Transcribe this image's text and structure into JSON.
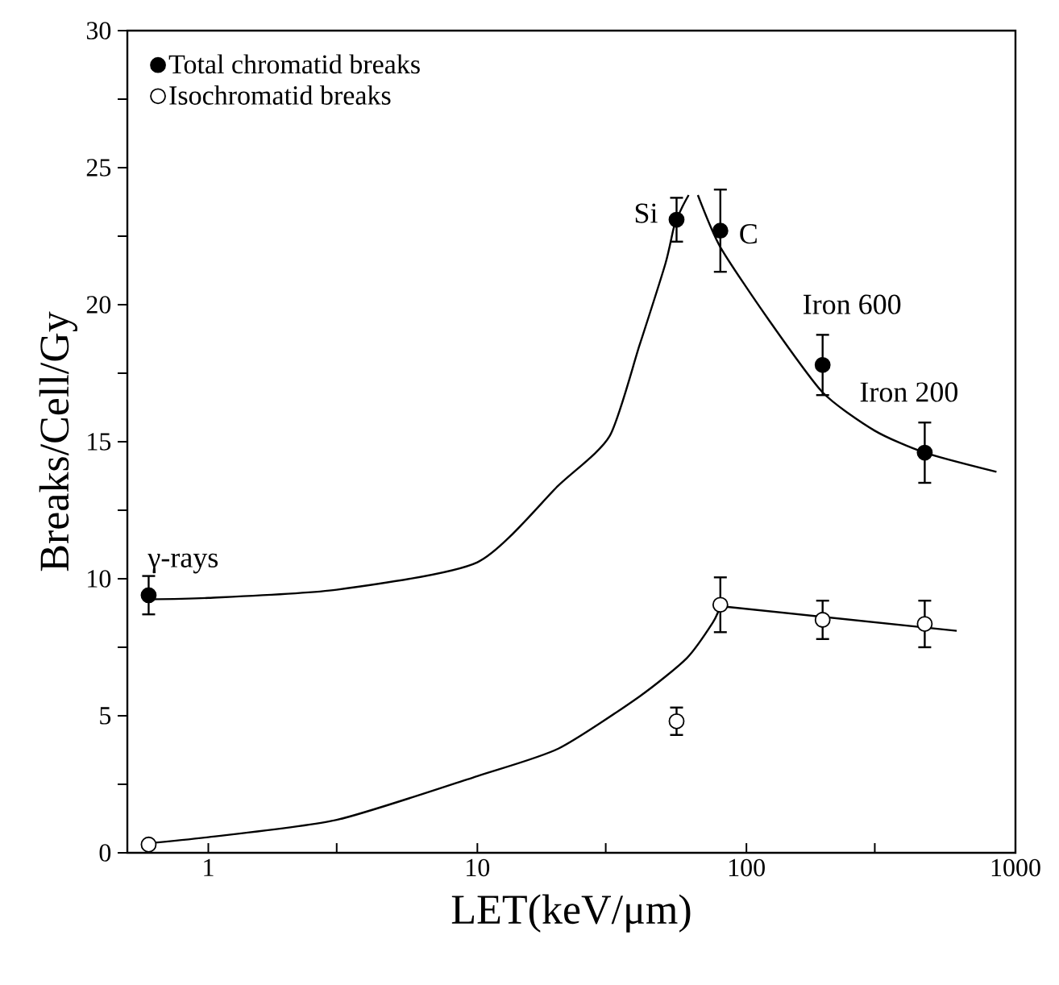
{
  "chart_data": {
    "type": "scatter",
    "xlabel": "LET(keV/μm)",
    "ylabel": "Breaks/Cell/Gy",
    "log": "x",
    "xlim": [
      0.5,
      1000
    ],
    "xticks": [
      1,
      10,
      100,
      1000,
      {
        "value": 3,
        "label": null
      },
      {
        "value": 30,
        "label": null
      },
      {
        "value": 300,
        "label": null
      }
    ],
    "ylim": [
      0,
      30
    ],
    "yticks": [
      0,
      5,
      10,
      15,
      20,
      25,
      30,
      {
        "value": 2.5,
        "label": null
      },
      {
        "value": 7.5,
        "label": null
      },
      {
        "value": 12.5,
        "label": null
      },
      {
        "value": 17.5,
        "label": null
      },
      {
        "value": 22.5,
        "label": null
      },
      {
        "value": 27.5,
        "label": null
      }
    ],
    "legend": "top left",
    "grid": false,
    "series": [
      {
        "name": "Total chromatid breaks",
        "marker": "circle",
        "color": "#000000",
        "x": [
          0.6,
          55,
          80,
          192,
          460
        ],
        "values": [
          9.4,
          23.1,
          22.7,
          17.8,
          14.6
        ],
        "errors": [
          0.7,
          0.8,
          1.5,
          1.1,
          1.1
        ]
      },
      {
        "name": "Isochromatid breaks",
        "marker": "circle",
        "color": "#000000",
        "x": [
          0.6,
          55,
          80,
          192,
          460
        ],
        "values": [
          0.3,
          4.8,
          9.05,
          8.5,
          8.35
        ],
        "errors": [
          null,
          0.5,
          1.0,
          0.7,
          0.85
        ]
      },
      {
        "type": "line",
        "marker": "none",
        "color": "#000000",
        "x": [
          0.6,
          1,
          3,
          10,
          20,
          31,
          40,
          50,
          54,
          58,
          61
        ],
        "values": [
          9.25,
          9.3,
          9.6,
          10.6,
          13.4,
          15.2,
          18.5,
          21.5,
          22.9,
          23.6,
          24
        ]
      },
      {
        "type": "line",
        "marker": "none",
        "color": "#000000",
        "x": [
          66,
          80,
          120,
          192,
          300,
          460,
          850
        ],
        "values": [
          24,
          22.1,
          19.5,
          16.8,
          15.4,
          14.6,
          13.9
        ]
      },
      {
        "type": "line",
        "marker": "none",
        "color": "#000000",
        "x": [
          0.6,
          1,
          3,
          10,
          20,
          40,
          60,
          75,
          80
        ],
        "values": [
          0.35,
          0.57,
          1.2,
          2.8,
          3.8,
          5.7,
          7.1,
          8.4,
          9.0
        ]
      },
      {
        "type": "line",
        "marker": "none",
        "color": "#000000",
        "x": [
          80,
          605
        ],
        "values": [
          9.0,
          8.1
        ]
      }
    ],
    "annotations": [
      {
        "text": "γ-rays",
        "x": 0.6,
        "y": 9.4
      },
      {
        "text": "Si",
        "x": 55,
        "y": 23.1
      },
      {
        "text": "C",
        "x": 80,
        "y": 22.7
      },
      {
        "text": "Iron 600",
        "x": 192,
        "y": 17.8
      },
      {
        "text": "Iron 200",
        "x": 460,
        "y": 14.6
      }
    ]
  }
}
